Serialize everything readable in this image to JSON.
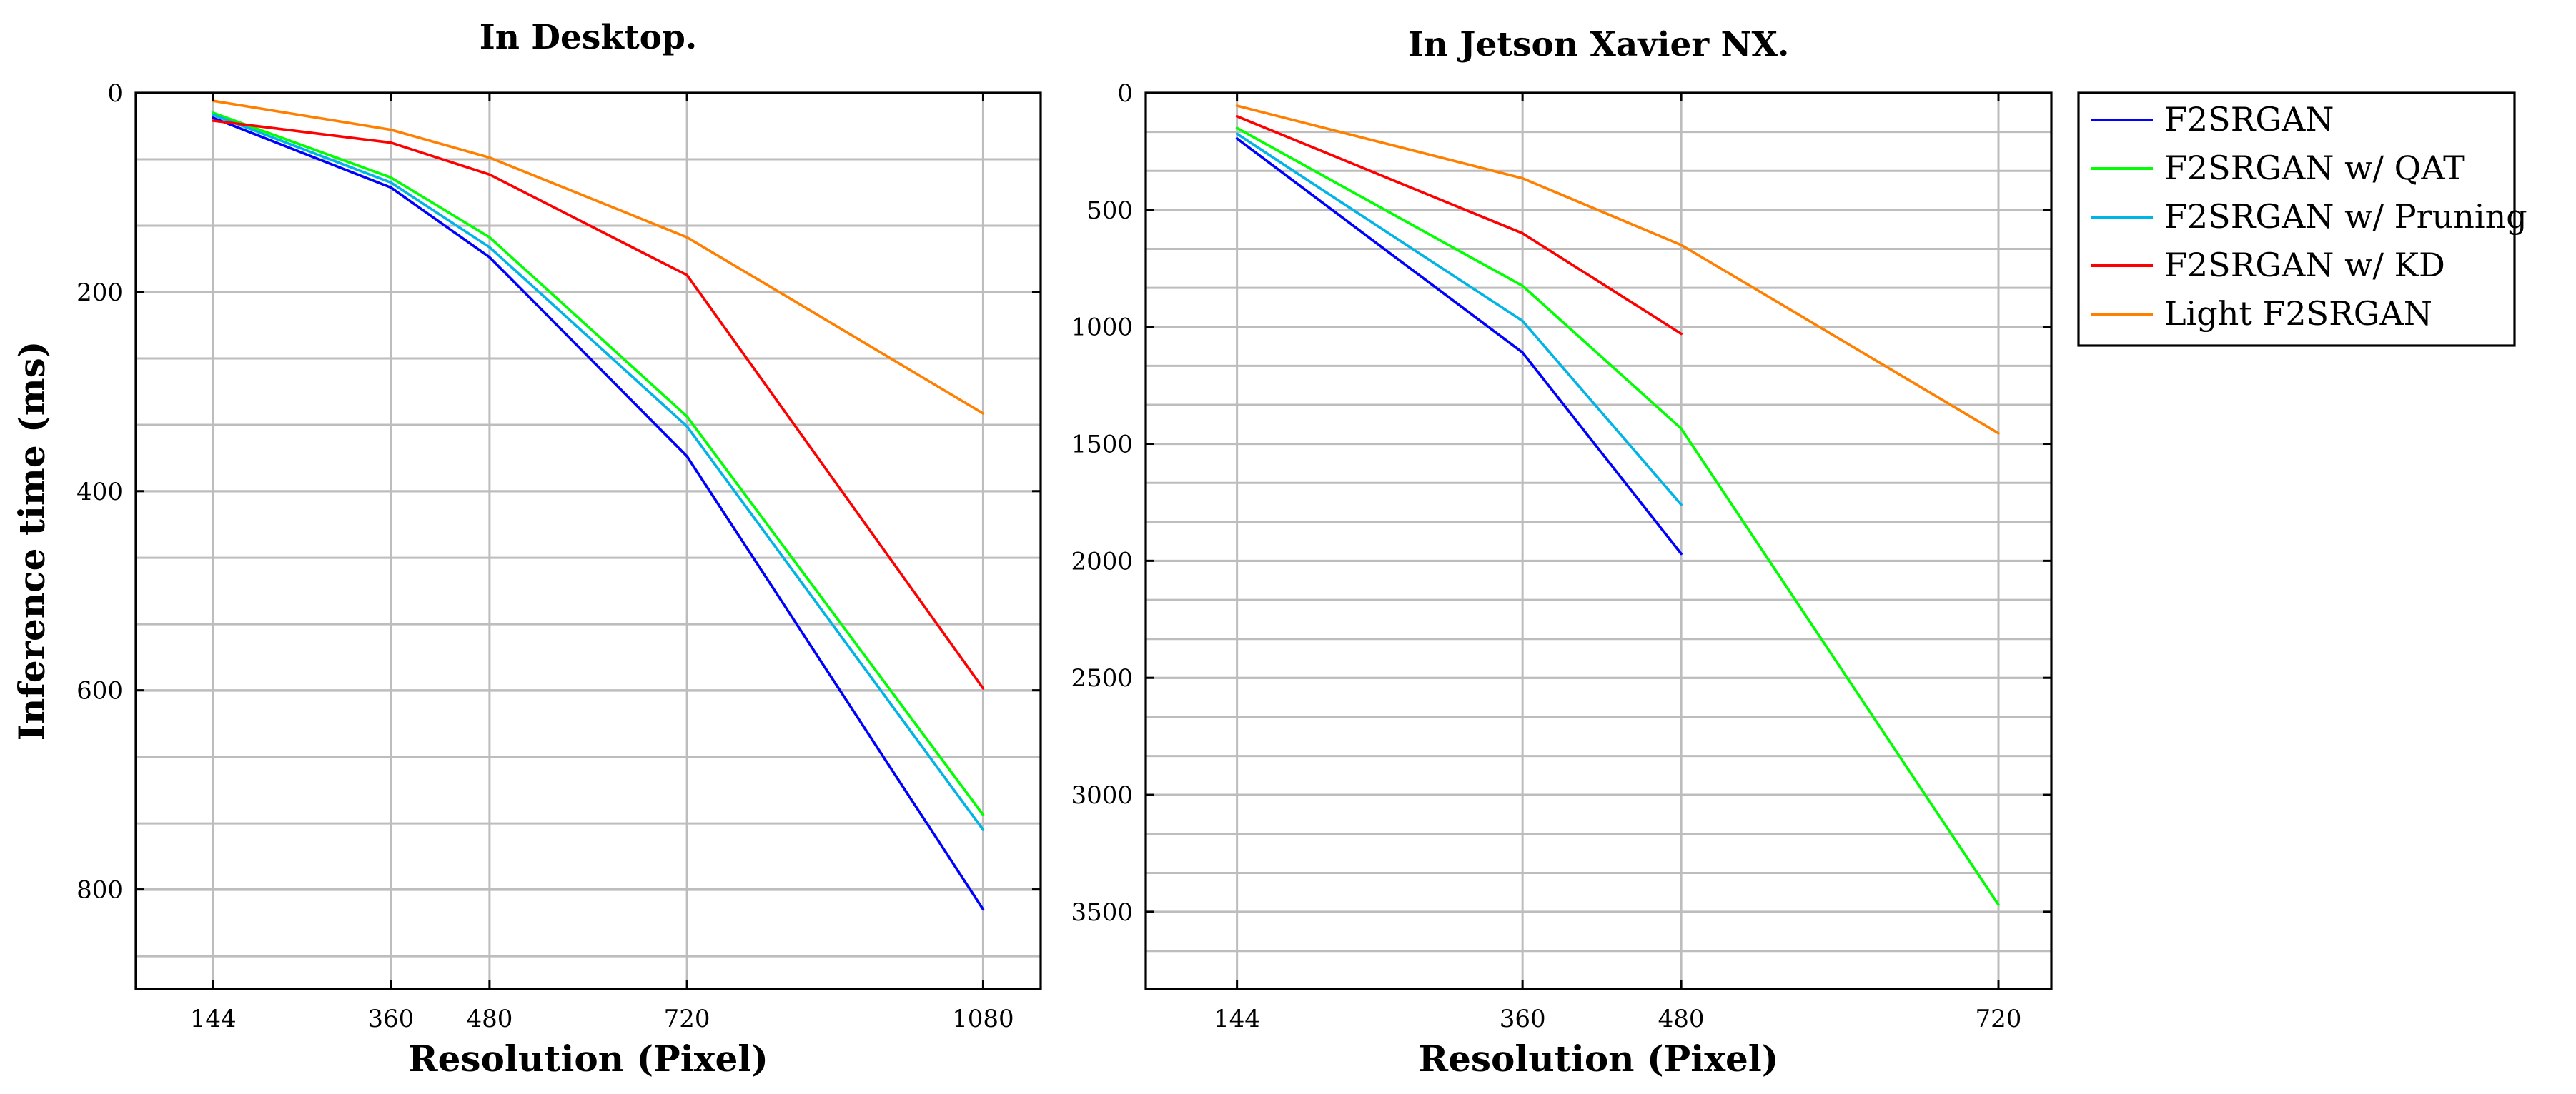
{
  "chart_data": [
    {
      "type": "line",
      "title": "In Desktop.",
      "xlabel": "Resolution (Pixel)",
      "ylabel": "Inference time (ms)",
      "x_ticks": [
        144,
        360,
        480,
        720,
        1080
      ],
      "y_ticks": [
        0,
        200,
        400,
        600,
        800
      ],
      "y_minor_grid_step": 66.7,
      "xlim": [
        50,
        1150
      ],
      "ylim": [
        0,
        900
      ],
      "y_inverted": true,
      "grid": true,
      "series": [
        {
          "name": "F2SRGAN",
          "color": "#0000ff",
          "x": [
            144,
            360,
            480,
            720,
            1080
          ],
          "y": [
            25,
            95,
            165,
            365,
            820
          ]
        },
        {
          "name": "F2SRGAN w/ QAT",
          "color": "#00ff00",
          "x": [
            144,
            360,
            480,
            720,
            1080
          ],
          "y": [
            20,
            85,
            145,
            325,
            725
          ]
        },
        {
          "name": "F2SRGAN w/ Pruning",
          "color": "#00b4e6",
          "x": [
            144,
            360,
            480,
            720,
            1080
          ],
          "y": [
            22,
            90,
            155,
            335,
            740
          ]
        },
        {
          "name": "F2SRGAN w/ KD",
          "color": "#ff0000",
          "x": [
            144,
            360,
            480,
            720,
            1080
          ],
          "y": [
            28,
            50,
            82,
            183,
            598
          ]
        },
        {
          "name": "Light F2SRGAN",
          "color": "#ff8000",
          "x": [
            144,
            360,
            480,
            720,
            1080
          ],
          "y": [
            8,
            37,
            65,
            145,
            322
          ]
        }
      ]
    },
    {
      "type": "line",
      "title": "In Jetson Xavier NX.",
      "xlabel": "Resolution (Pixel)",
      "ylabel": "",
      "x_ticks": [
        144,
        360,
        480,
        720
      ],
      "y_ticks": [
        0,
        500,
        1000,
        1500,
        2000,
        2500,
        3000,
        3500
      ],
      "y_minor_grid_step": 166.7,
      "xlim": [
        75,
        760
      ],
      "ylim": [
        0,
        3830
      ],
      "y_inverted": true,
      "grid": true,
      "series": [
        {
          "name": "F2SRGAN",
          "color": "#0000ff",
          "x": [
            144,
            360,
            480
          ],
          "y": [
            195,
            1110,
            1970
          ]
        },
        {
          "name": "F2SRGAN w/ QAT",
          "color": "#00ff00",
          "x": [
            144,
            360,
            480,
            720
          ],
          "y": [
            150,
            825,
            1435,
            3470
          ]
        },
        {
          "name": "F2SRGAN w/ Pruning",
          "color": "#00b4e6",
          "x": [
            144,
            360,
            480
          ],
          "y": [
            175,
            975,
            1760
          ]
        },
        {
          "name": "F2SRGAN w/ KD",
          "color": "#ff0000",
          "x": [
            144,
            360,
            480
          ],
          "y": [
            100,
            600,
            1030
          ]
        },
        {
          "name": "Light F2SRGAN",
          "color": "#ff8000",
          "x": [
            144,
            360,
            480,
            720
          ],
          "y": [
            55,
            365,
            650,
            1455
          ]
        }
      ]
    }
  ],
  "legend": {
    "position": "right",
    "items": [
      {
        "label": "F2SRGAN",
        "color": "#0000ff"
      },
      {
        "label": "F2SRGAN w/ QAT",
        "color": "#00ff00"
      },
      {
        "label": "F2SRGAN w/ Pruning",
        "color": "#00b4e6"
      },
      {
        "label": "F2SRGAN w/ KD",
        "color": "#ff0000"
      },
      {
        "label": "Light F2SRGAN",
        "color": "#ff8000"
      }
    ]
  }
}
